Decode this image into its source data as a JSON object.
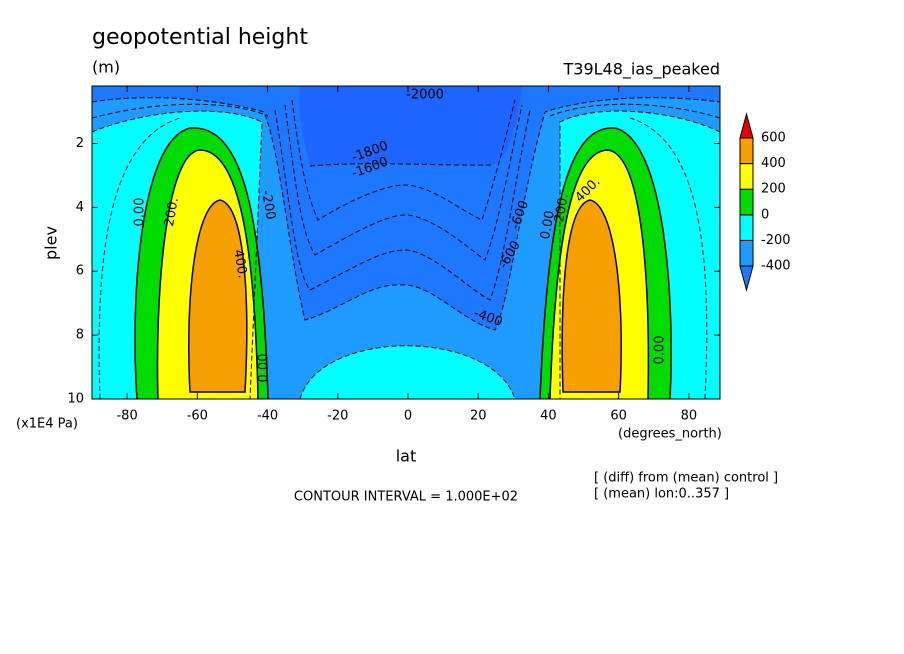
{
  "chart_data": {
    "type": "contour",
    "title": "geopotential height",
    "subtitle": "(m)",
    "run_label": "T39L48_ias_peaked",
    "x_label": "lat",
    "x_unit": "(degrees_north)",
    "y_label": "plev",
    "y_unit": "(x1E4 Pa)",
    "xlim": [
      -90,
      90
    ],
    "ylim": [
      10,
      0.2
    ],
    "xticks": [
      -80,
      -60,
      -40,
      -20,
      0,
      20,
      40,
      60,
      80
    ],
    "yticks": [
      2,
      4,
      6,
      8,
      10
    ],
    "levels": [
      -400,
      -200,
      0,
      200,
      400,
      600
    ],
    "colors": [
      "#1e78ff",
      "#1e9bff",
      "#00ffff",
      "#00dc00",
      "#ffff00",
      "#f5a000",
      "#e60000"
    ],
    "contour_labels": [
      "-2000",
      "-1800",
      "-1600",
      "-600",
      "-600",
      "-400",
      "-200",
      "0.00",
      "0.00",
      "0.00",
      "0.00",
      "200.",
      "200.",
      "400.",
      "400."
    ],
    "contour_interval": "CONTOUR INTERVAL = 1.000E+02",
    "notes": [
      "[ (diff) from (mean) control ]",
      "[ (mean) lon:0..357 ]"
    ]
  }
}
